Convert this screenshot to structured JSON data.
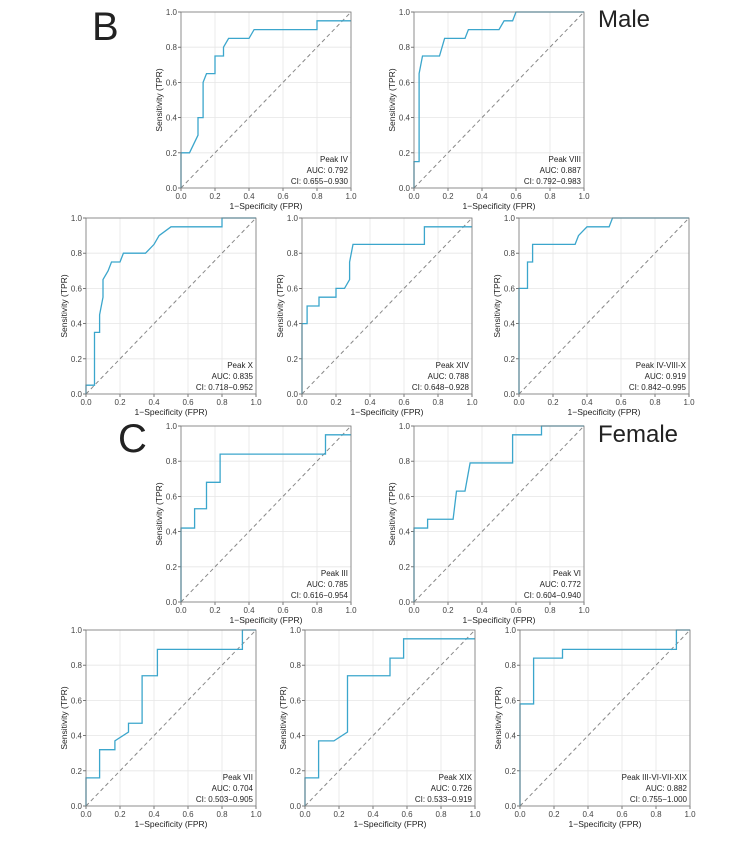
{
  "figure_labels": [
    {
      "letter": "B",
      "group": "Male"
    },
    {
      "letter": "C",
      "group": "Female"
    }
  ],
  "chart_data": [
    {
      "type": "line",
      "xlabel": "1−Specificity (FPR)",
      "ylabel": "Sensitivity (TPR)",
      "annotations": [
        "Peak IV",
        "AUC: 0.792",
        "CI: 0.655−0.930"
      ],
      "color": "#3ba6cc",
      "grid": true,
      "xlim": [
        0,
        1
      ],
      "ylim": [
        0,
        1
      ],
      "xticks": [
        {
          "value": 0,
          "label": "0.0"
        },
        0.2,
        0.4,
        0.6,
        0.8,
        {
          "value": 1,
          "label": "1.0"
        }
      ],
      "yticks": [
        {
          "value": 0,
          "label": "0.0"
        },
        0.2,
        0.4,
        0.6,
        0.8,
        {
          "value": 1,
          "label": "1.0"
        }
      ],
      "x": [
        0,
        0,
        0.05,
        0.1,
        0.1,
        0.13,
        0.13,
        0.15,
        0.2,
        0.2,
        0.25,
        0.25,
        0.28,
        0.4,
        0.43,
        0.8,
        0.8,
        1
      ],
      "values": [
        0,
        0.2,
        0.2,
        0.3,
        0.4,
        0.4,
        0.6,
        0.65,
        0.65,
        0.75,
        0.75,
        0.8,
        0.85,
        0.85,
        0.9,
        0.9,
        0.95,
        0.95
      ]
    },
    {
      "type": "line",
      "xlabel": "1−Specificity (FPR)",
      "ylabel": "Sensitivity (TPR)",
      "annotations": [
        "Peak VIII",
        "AUC: 0.887",
        "CI: 0.792−0.983"
      ],
      "color": "#3ba6cc",
      "grid": true,
      "xlim": [
        0,
        1
      ],
      "ylim": [
        0,
        1
      ],
      "xticks": [
        {
          "value": 0,
          "label": "0.0"
        },
        0.2,
        0.4,
        0.6,
        0.8,
        {
          "value": 1,
          "label": "1.0"
        }
      ],
      "yticks": [
        {
          "value": 0,
          "label": "0.0"
        },
        0.2,
        0.4,
        0.6,
        0.8,
        {
          "value": 1,
          "label": "1.0"
        }
      ],
      "x": [
        0,
        0,
        0.03,
        0.03,
        0.05,
        0.15,
        0.18,
        0.3,
        0.32,
        0.5,
        0.53,
        0.58,
        0.6,
        1
      ],
      "values": [
        0,
        0.15,
        0.15,
        0.65,
        0.75,
        0.75,
        0.85,
        0.85,
        0.9,
        0.9,
        0.95,
        0.95,
        1,
        1
      ]
    },
    {
      "type": "line",
      "xlabel": "1−Specificity (FPR)",
      "ylabel": "Sensitivity (TPR)",
      "annotations": [
        "Peak X",
        "AUC: 0.835",
        "CI: 0.718−0.952"
      ],
      "color": "#3ba6cc",
      "grid": true,
      "xlim": [
        0,
        1
      ],
      "ylim": [
        0,
        1
      ],
      "xticks": [
        {
          "value": 0,
          "label": "0.0"
        },
        0.2,
        0.4,
        0.6,
        0.8,
        {
          "value": 1,
          "label": "1.0"
        }
      ],
      "yticks": [
        {
          "value": 0,
          "label": "0.0"
        },
        0.2,
        0.4,
        0.6,
        0.8,
        {
          "value": 1,
          "label": "1.0"
        }
      ],
      "x": [
        0,
        0,
        0.05,
        0.05,
        0.08,
        0.08,
        0.1,
        0.1,
        0.13,
        0.15,
        0.2,
        0.22,
        0.35,
        0.4,
        0.43,
        0.5,
        0.8,
        0.8,
        1
      ],
      "values": [
        0,
        0.05,
        0.05,
        0.35,
        0.35,
        0.45,
        0.55,
        0.65,
        0.7,
        0.75,
        0.75,
        0.8,
        0.8,
        0.85,
        0.9,
        0.95,
        0.95,
        1,
        1
      ]
    },
    {
      "type": "line",
      "xlabel": "1−Specificity (FPR)",
      "ylabel": "Sensitivity (TPR)",
      "annotations": [
        "Peak XIV",
        "AUC: 0.788",
        "CI: 0.648−0.928"
      ],
      "color": "#3ba6cc",
      "grid": true,
      "xlim": [
        0,
        1
      ],
      "ylim": [
        0,
        1
      ],
      "xticks": [
        {
          "value": 0,
          "label": "0.0"
        },
        0.2,
        0.4,
        0.6,
        0.8,
        {
          "value": 1,
          "label": "1.0"
        }
      ],
      "yticks": [
        {
          "value": 0,
          "label": "0.0"
        },
        0.2,
        0.4,
        0.6,
        0.8,
        {
          "value": 1,
          "label": "1.0"
        }
      ],
      "x": [
        0,
        0,
        0.03,
        0.03,
        0.1,
        0.1,
        0.2,
        0.2,
        0.25,
        0.28,
        0.28,
        0.3,
        0.72,
        0.72,
        1
      ],
      "values": [
        0,
        0.4,
        0.4,
        0.5,
        0.5,
        0.55,
        0.55,
        0.6,
        0.6,
        0.65,
        0.75,
        0.85,
        0.85,
        0.95,
        0.95
      ]
    },
    {
      "type": "line",
      "xlabel": "1−Specificity (FPR)",
      "ylabel": "Sensitivity (TPR)",
      "annotations": [
        "Peak IV-VIII-X",
        "AUC: 0.919",
        "CI: 0.842−0.995"
      ],
      "color": "#3ba6cc",
      "grid": true,
      "xlim": [
        0,
        1
      ],
      "ylim": [
        0,
        1
      ],
      "xticks": [
        {
          "value": 0,
          "label": "0.0"
        },
        0.2,
        0.4,
        0.6,
        0.8,
        {
          "value": 1,
          "label": "1.0"
        }
      ],
      "yticks": [
        {
          "value": 0,
          "label": "0.0"
        },
        0.2,
        0.4,
        0.6,
        0.8,
        {
          "value": 1,
          "label": "1.0"
        }
      ],
      "x": [
        0,
        0,
        0.05,
        0.05,
        0.08,
        0.08,
        0.33,
        0.35,
        0.4,
        0.53,
        0.55,
        1
      ],
      "values": [
        0,
        0.6,
        0.6,
        0.75,
        0.75,
        0.85,
        0.85,
        0.9,
        0.95,
        0.95,
        1,
        1
      ]
    },
    {
      "type": "line",
      "xlabel": "1−Specificity (FPR)",
      "ylabel": "Sensitivity (TPR)",
      "annotations": [
        "Peak III",
        "AUC: 0.785",
        "CI: 0.616−0.954"
      ],
      "color": "#3ba6cc",
      "grid": true,
      "xlim": [
        0,
        1
      ],
      "ylim": [
        0,
        1
      ],
      "xticks": [
        {
          "value": 0,
          "label": "0.0"
        },
        0.2,
        0.4,
        0.6,
        0.8,
        {
          "value": 1,
          "label": "1.0"
        }
      ],
      "yticks": [
        {
          "value": 0,
          "label": "0.0"
        },
        0.2,
        0.4,
        0.6,
        0.8,
        {
          "value": 1,
          "label": "1.0"
        }
      ],
      "x": [
        0,
        0,
        0.08,
        0.08,
        0.15,
        0.15,
        0.23,
        0.23,
        0.85,
        0.85,
        1
      ],
      "values": [
        0,
        0.42,
        0.42,
        0.53,
        0.53,
        0.68,
        0.68,
        0.84,
        0.84,
        0.95,
        0.95
      ]
    },
    {
      "type": "line",
      "xlabel": "1−Specificity (FPR)",
      "ylabel": "Sensitivity (TPR)",
      "annotations": [
        "Peak VI",
        "AUC: 0.772",
        "CI: 0.604−0.940"
      ],
      "color": "#3ba6cc",
      "grid": true,
      "xlim": [
        0,
        1
      ],
      "ylim": [
        0,
        1
      ],
      "xticks": [
        {
          "value": 0,
          "label": "0.0"
        },
        0.2,
        0.4,
        0.6,
        0.8,
        {
          "value": 1,
          "label": "1.0"
        }
      ],
      "yticks": [
        {
          "value": 0,
          "label": "0.0"
        },
        0.2,
        0.4,
        0.6,
        0.8,
        {
          "value": 1,
          "label": "1.0"
        }
      ],
      "x": [
        0,
        0,
        0.08,
        0.08,
        0.23,
        0.25,
        0.3,
        0.33,
        0.58,
        0.58,
        0.75,
        0.75,
        1
      ],
      "values": [
        0,
        0.42,
        0.42,
        0.47,
        0.47,
        0.63,
        0.63,
        0.79,
        0.79,
        0.95,
        0.95,
        1,
        1
      ]
    },
    {
      "type": "line",
      "xlabel": "1−Specificity (FPR)",
      "ylabel": "Sensitivity (TPR)",
      "annotations": [
        "Peak VII",
        "AUC: 0.704",
        "CI: 0.503−0.905"
      ],
      "color": "#3ba6cc",
      "grid": true,
      "xlim": [
        0,
        1
      ],
      "ylim": [
        0,
        1
      ],
      "xticks": [
        {
          "value": 0,
          "label": "0.0"
        },
        0.2,
        0.4,
        0.6,
        0.8,
        {
          "value": 1,
          "label": "1.0"
        }
      ],
      "yticks": [
        {
          "value": 0,
          "label": "0.0"
        },
        0.2,
        0.4,
        0.6,
        0.8,
        {
          "value": 1,
          "label": "1.0"
        }
      ],
      "x": [
        0,
        0,
        0.08,
        0.08,
        0.17,
        0.17,
        0.25,
        0.25,
        0.33,
        0.33,
        0.42,
        0.42,
        0.92,
        0.92,
        1
      ],
      "values": [
        0,
        0.16,
        0.16,
        0.32,
        0.32,
        0.37,
        0.42,
        0.47,
        0.47,
        0.74,
        0.74,
        0.89,
        0.89,
        1,
        1
      ]
    },
    {
      "type": "line",
      "xlabel": "1−Specificity (FPR)",
      "ylabel": "Sensitivity (TPR)",
      "annotations": [
        "Peak XIX",
        "AUC: 0.726",
        "CI: 0.533−0.919"
      ],
      "color": "#3ba6cc",
      "grid": true,
      "xlim": [
        0,
        1
      ],
      "ylim": [
        0,
        1
      ],
      "xticks": [
        {
          "value": 0,
          "label": "0.0"
        },
        0.2,
        0.4,
        0.6,
        0.8,
        {
          "value": 1,
          "label": "1.0"
        }
      ],
      "yticks": [
        {
          "value": 0,
          "label": "0.0"
        },
        0.2,
        0.4,
        0.6,
        0.8,
        {
          "value": 1,
          "label": "1.0"
        }
      ],
      "x": [
        0,
        0,
        0.08,
        0.08,
        0.17,
        0.25,
        0.25,
        0.5,
        0.5,
        0.58,
        0.58,
        1
      ],
      "values": [
        0,
        0.16,
        0.16,
        0.37,
        0.37,
        0.42,
        0.74,
        0.74,
        0.84,
        0.84,
        0.95,
        0.95
      ]
    },
    {
      "type": "line",
      "xlabel": "1−Specificity (FPR)",
      "ylabel": "Sensitivity (TPR)",
      "annotations": [
        "Peak III-VI-VII-XIX",
        "AUC: 0.882",
        "CI: 0.755−1.000"
      ],
      "color": "#3ba6cc",
      "grid": true,
      "xlim": [
        0,
        1
      ],
      "ylim": [
        0,
        1
      ],
      "xticks": [
        {
          "value": 0,
          "label": "0.0"
        },
        0.2,
        0.4,
        0.6,
        0.8,
        {
          "value": 1,
          "label": "1.0"
        }
      ],
      "yticks": [
        {
          "value": 0,
          "label": "0.0"
        },
        0.2,
        0.4,
        0.6,
        0.8,
        {
          "value": 1,
          "label": "1.0"
        }
      ],
      "x": [
        0,
        0,
        0.08,
        0.08,
        0.25,
        0.25,
        0.92,
        0.92,
        1
      ],
      "values": [
        0,
        0.58,
        0.58,
        0.84,
        0.84,
        0.89,
        0.89,
        1,
        1
      ]
    }
  ]
}
